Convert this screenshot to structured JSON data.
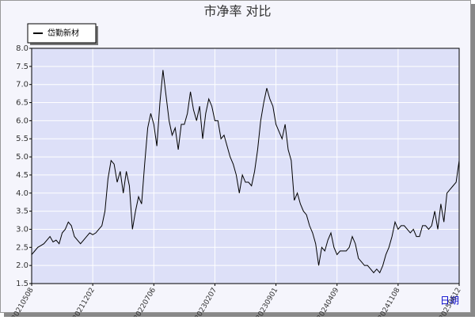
{
  "chart_data": {
    "type": "line",
    "title": "市净率 对比",
    "xlabel": "日期",
    "x": [
      0,
      1,
      2,
      3,
      4,
      5,
      6,
      7,
      8,
      9,
      10,
      11,
      12,
      13,
      14,
      15,
      16,
      17,
      18,
      19,
      20,
      21,
      22,
      23,
      24,
      25,
      26,
      27,
      28,
      29,
      30,
      31,
      32,
      33,
      34,
      35,
      36,
      37,
      38,
      39,
      40,
      41,
      42,
      43,
      44,
      45,
      46,
      47,
      48,
      49,
      50,
      51,
      52,
      53,
      54,
      55,
      56,
      57,
      58,
      59,
      60,
      61,
      62,
      63,
      64,
      65,
      66,
      67,
      68,
      69,
      70,
      71,
      72,
      73,
      74,
      75,
      76,
      77,
      78,
      79,
      80,
      81,
      82,
      83,
      84,
      85,
      86,
      87,
      88,
      89,
      90,
      91,
      92,
      93,
      94,
      95,
      96,
      97,
      98,
      99,
      100,
      101,
      102,
      103,
      104,
      105,
      106,
      107,
      108,
      109,
      110,
      111,
      112,
      113,
      114,
      115,
      116,
      117,
      118,
      119,
      120,
      121,
      122,
      123,
      124,
      125,
      126,
      127,
      128,
      129,
      130,
      131,
      132,
      133,
      134,
      135,
      136,
      137,
      138,
      139,
      140
    ],
    "series": [
      {
        "name": "岱勤新材",
        "color": "#000000",
        "values": [
          2.3,
          2.4,
          2.5,
          2.55,
          2.6,
          2.7,
          2.8,
          2.65,
          2.7,
          2.6,
          2.9,
          3.0,
          3.2,
          3.1,
          2.8,
          2.7,
          2.6,
          2.7,
          2.8,
          2.9,
          2.85,
          2.9,
          3.0,
          3.1,
          3.5,
          4.4,
          4.9,
          4.8,
          4.3,
          4.6,
          4.0,
          4.6,
          4.2,
          3.0,
          3.5,
          3.9,
          3.7,
          4.8,
          5.8,
          6.2,
          5.9,
          5.3,
          6.5,
          7.4,
          6.7,
          6.0,
          5.6,
          5.8,
          5.2,
          5.9,
          5.9,
          6.2,
          6.8,
          6.3,
          6.0,
          6.4,
          5.5,
          6.2,
          6.6,
          6.4,
          6.0,
          6.0,
          5.5,
          5.6,
          5.3,
          5.0,
          4.8,
          4.5,
          4.0,
          4.5,
          4.3,
          4.3,
          4.2,
          4.6,
          5.2,
          6.0,
          6.5,
          6.9,
          6.6,
          6.4,
          5.9,
          5.7,
          5.5,
          5.9,
          5.2,
          4.9,
          3.8,
          4.0,
          3.7,
          3.5,
          3.4,
          3.1,
          2.9,
          2.6,
          2.0,
          2.5,
          2.4,
          2.7,
          2.9,
          2.5,
          2.3,
          2.4,
          2.4,
          2.4,
          2.5,
          2.8,
          2.6,
          2.2,
          2.1,
          2.0,
          2.0,
          1.9,
          1.8,
          1.9,
          1.8,
          2.0,
          2.3,
          2.5,
          2.8,
          3.2,
          3.0,
          3.1,
          3.1,
          3.0,
          2.9,
          3.0,
          2.8,
          2.8,
          3.1,
          3.1,
          3.0,
          3.1,
          3.5,
          3.0,
          3.7,
          3.2,
          4.0,
          4.1,
          4.2,
          4.3,
          4.9
        ]
      }
    ],
    "xlim": [
      0,
      140
    ],
    "xticks": [
      {
        "value": 0,
        "label": "20210508"
      },
      {
        "value": 20,
        "label": "20211202"
      },
      {
        "value": 40,
        "label": "20220706"
      },
      {
        "value": 60,
        "label": "20230207"
      },
      {
        "value": 80,
        "label": "20230901"
      },
      {
        "value": 100,
        "label": "20240409"
      },
      {
        "value": 120,
        "label": "20241108"
      },
      {
        "value": 140,
        "label": "20250612"
      }
    ],
    "ylim": [
      1.5,
      8.0
    ],
    "yticks": [
      1.5,
      {
        "value": 2.0,
        "label": "2.0"
      },
      2.5,
      {
        "value": 3.0,
        "label": "3.0"
      },
      3.5,
      {
        "value": 4.0,
        "label": "4.0"
      },
      4.5,
      {
        "value": 5.0,
        "label": "5.0"
      },
      5.5,
      {
        "value": 6.0,
        "label": "6.0"
      },
      6.5,
      {
        "value": 7.0,
        "label": "7.0"
      },
      7.5,
      {
        "value": 8.0,
        "label": "8.0"
      }
    ],
    "grid": true,
    "legend": "top-left"
  }
}
